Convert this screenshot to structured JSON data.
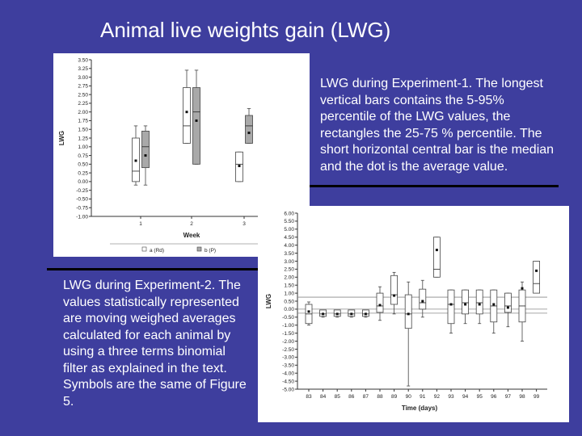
{
  "slide": {
    "title": "Animal live weights gain (LWG)",
    "note1": "LWG during Experiment-1.  The longest vertical bars contains the 5-95% percentile of the LWG values, the rectangles the 25-75 % percentile. The short horizontal central bar is the median and the dot is the average value.",
    "note2": "LWG during Experiment-2. The values statistically represented are moving weighed averages calculated for each animal by using a three terms binomial filter as explained in the text. Symbols are the same of Figure 5."
  },
  "colors": {
    "background": "#3e3e9e",
    "box_a": "#ffffff",
    "box_b": "#a9a9a9",
    "stroke": "#444444"
  },
  "chart_data": [
    {
      "type": "box",
      "xlabel": "Week",
      "ylabel": "LWG",
      "ylim": [
        -1.0,
        3.5
      ],
      "yticks": [
        "3.50",
        "3.25",
        "3.00",
        "2.75",
        "2.50",
        "2.25",
        "2.00",
        "1.75",
        "1.50",
        "1.25",
        "1.00",
        "0.75",
        "0.50",
        "0.25",
        "0.00",
        "-0.25",
        "-0.50",
        "-0.75",
        "-1.00"
      ],
      "categories": [
        "1",
        "2",
        "3"
      ],
      "legend": [
        "a (Rd)",
        "b (P)"
      ],
      "groups": [
        {
          "week": "1",
          "series": "a",
          "min": -0.1,
          "q1": 0.0,
          "median": 0.3,
          "q3": 1.25,
          "max": 1.6,
          "mean": 0.6
        },
        {
          "week": "1",
          "series": "b",
          "min": -0.1,
          "q1": 0.4,
          "median": 1.0,
          "q3": 1.45,
          "max": 1.6,
          "mean": 0.75
        },
        {
          "week": "2",
          "series": "a",
          "min": 1.1,
          "q1": 1.1,
          "median": 1.6,
          "q3": 2.7,
          "max": 3.2,
          "mean": 2.0
        },
        {
          "week": "2",
          "series": "b",
          "min": 0.5,
          "q1": 0.5,
          "median": 2.0,
          "q3": 2.7,
          "max": 3.2,
          "mean": 1.75
        },
        {
          "week": "3",
          "series": "a",
          "min": 0.0,
          "q1": 0.0,
          "median": 0.5,
          "q3": 0.85,
          "max": 0.85,
          "mean": 0.45
        },
        {
          "week": "3",
          "series": "b",
          "min": 1.1,
          "q1": 1.1,
          "median": 1.6,
          "q3": 1.9,
          "max": 2.1,
          "mean": 1.4
        }
      ]
    },
    {
      "type": "box",
      "xlabel": "Time (days)",
      "ylabel": "LWG",
      "ylim": [
        -5.0,
        6.0
      ],
      "yticks": [
        "6.00",
        "5.50",
        "5.00",
        "4.50",
        "4.00",
        "3.50",
        "3.00",
        "2.50",
        "2.00",
        "1.50",
        "1.00",
        "0.50",
        "0.00",
        "-0.50",
        "-1.00",
        "-1.50",
        "-2.00",
        "-2.50",
        "-3.00",
        "-3.50",
        "-4.00",
        "-4.50",
        "-5.00"
      ],
      "categories": [
        "83",
        "84",
        "85",
        "86",
        "87",
        "88",
        "89",
        "90",
        "91",
        "92",
        "93",
        "94",
        "95",
        "96",
        "97",
        "98",
        "99"
      ],
      "reference_lines": [
        0.75,
        0.0,
        -0.25
      ],
      "groups": [
        {
          "day": "83",
          "min": -1.0,
          "q1": -0.9,
          "median": -0.3,
          "q3": 0.3,
          "max": 0.45,
          "mean": -0.15
        },
        {
          "day": "84",
          "min": -0.5,
          "q1": -0.45,
          "median": -0.3,
          "q3": -0.05,
          "max": -0.05,
          "mean": -0.3
        },
        {
          "day": "85",
          "min": -0.5,
          "q1": -0.45,
          "median": -0.3,
          "q3": -0.05,
          "max": -0.05,
          "mean": -0.3
        },
        {
          "day": "86",
          "min": -0.5,
          "q1": -0.45,
          "median": -0.3,
          "q3": -0.05,
          "max": -0.05,
          "mean": -0.3
        },
        {
          "day": "87",
          "min": -0.5,
          "q1": -0.45,
          "median": -0.3,
          "q3": -0.05,
          "max": -0.05,
          "mean": -0.3
        },
        {
          "day": "88",
          "min": -0.7,
          "q1": -0.2,
          "median": 0.2,
          "q3": 1.0,
          "max": 1.4,
          "mean": 0.25
        },
        {
          "day": "89",
          "min": -0.3,
          "q1": 0.3,
          "median": 0.9,
          "q3": 2.1,
          "max": 2.3,
          "mean": 0.85
        },
        {
          "day": "90",
          "min": -4.8,
          "q1": -1.2,
          "median": -0.3,
          "q3": 0.9,
          "max": 1.7,
          "mean": -0.3
        },
        {
          "day": "91",
          "min": -0.5,
          "q1": 0.0,
          "median": 0.4,
          "q3": 1.25,
          "max": 1.8,
          "mean": 0.5
        },
        {
          "day": "92",
          "min": 2.0,
          "q1": 2.0,
          "median": 2.5,
          "q3": 4.5,
          "max": 4.5,
          "mean": 3.7
        },
        {
          "day": "93",
          "min": -1.5,
          "q1": -0.9,
          "median": 0.3,
          "q3": 1.2,
          "max": 1.2,
          "mean": 0.3
        },
        {
          "day": "94",
          "min": -0.9,
          "q1": -0.3,
          "median": 0.4,
          "q3": 1.2,
          "max": 1.2,
          "mean": 0.3
        },
        {
          "day": "95",
          "min": -0.9,
          "q1": -0.3,
          "median": 0.4,
          "q3": 1.2,
          "max": 1.2,
          "mean": 0.3
        },
        {
          "day": "96",
          "min": -1.5,
          "q1": -0.8,
          "median": 0.2,
          "q3": 1.2,
          "max": 1.2,
          "mean": 0.3
        },
        {
          "day": "97",
          "min": -1.1,
          "q1": -0.2,
          "median": 0.2,
          "q3": 1.0,
          "max": 1.0,
          "mean": 0.1
        },
        {
          "day": "98",
          "min": -2.0,
          "q1": -0.8,
          "median": 0.2,
          "q3": 1.2,
          "max": 1.7,
          "mean": 1.3
        },
        {
          "day": "99",
          "min": 1.0,
          "q1": 1.0,
          "median": 1.6,
          "q3": 3.0,
          "max": 3.0,
          "mean": 2.4
        }
      ]
    }
  ]
}
